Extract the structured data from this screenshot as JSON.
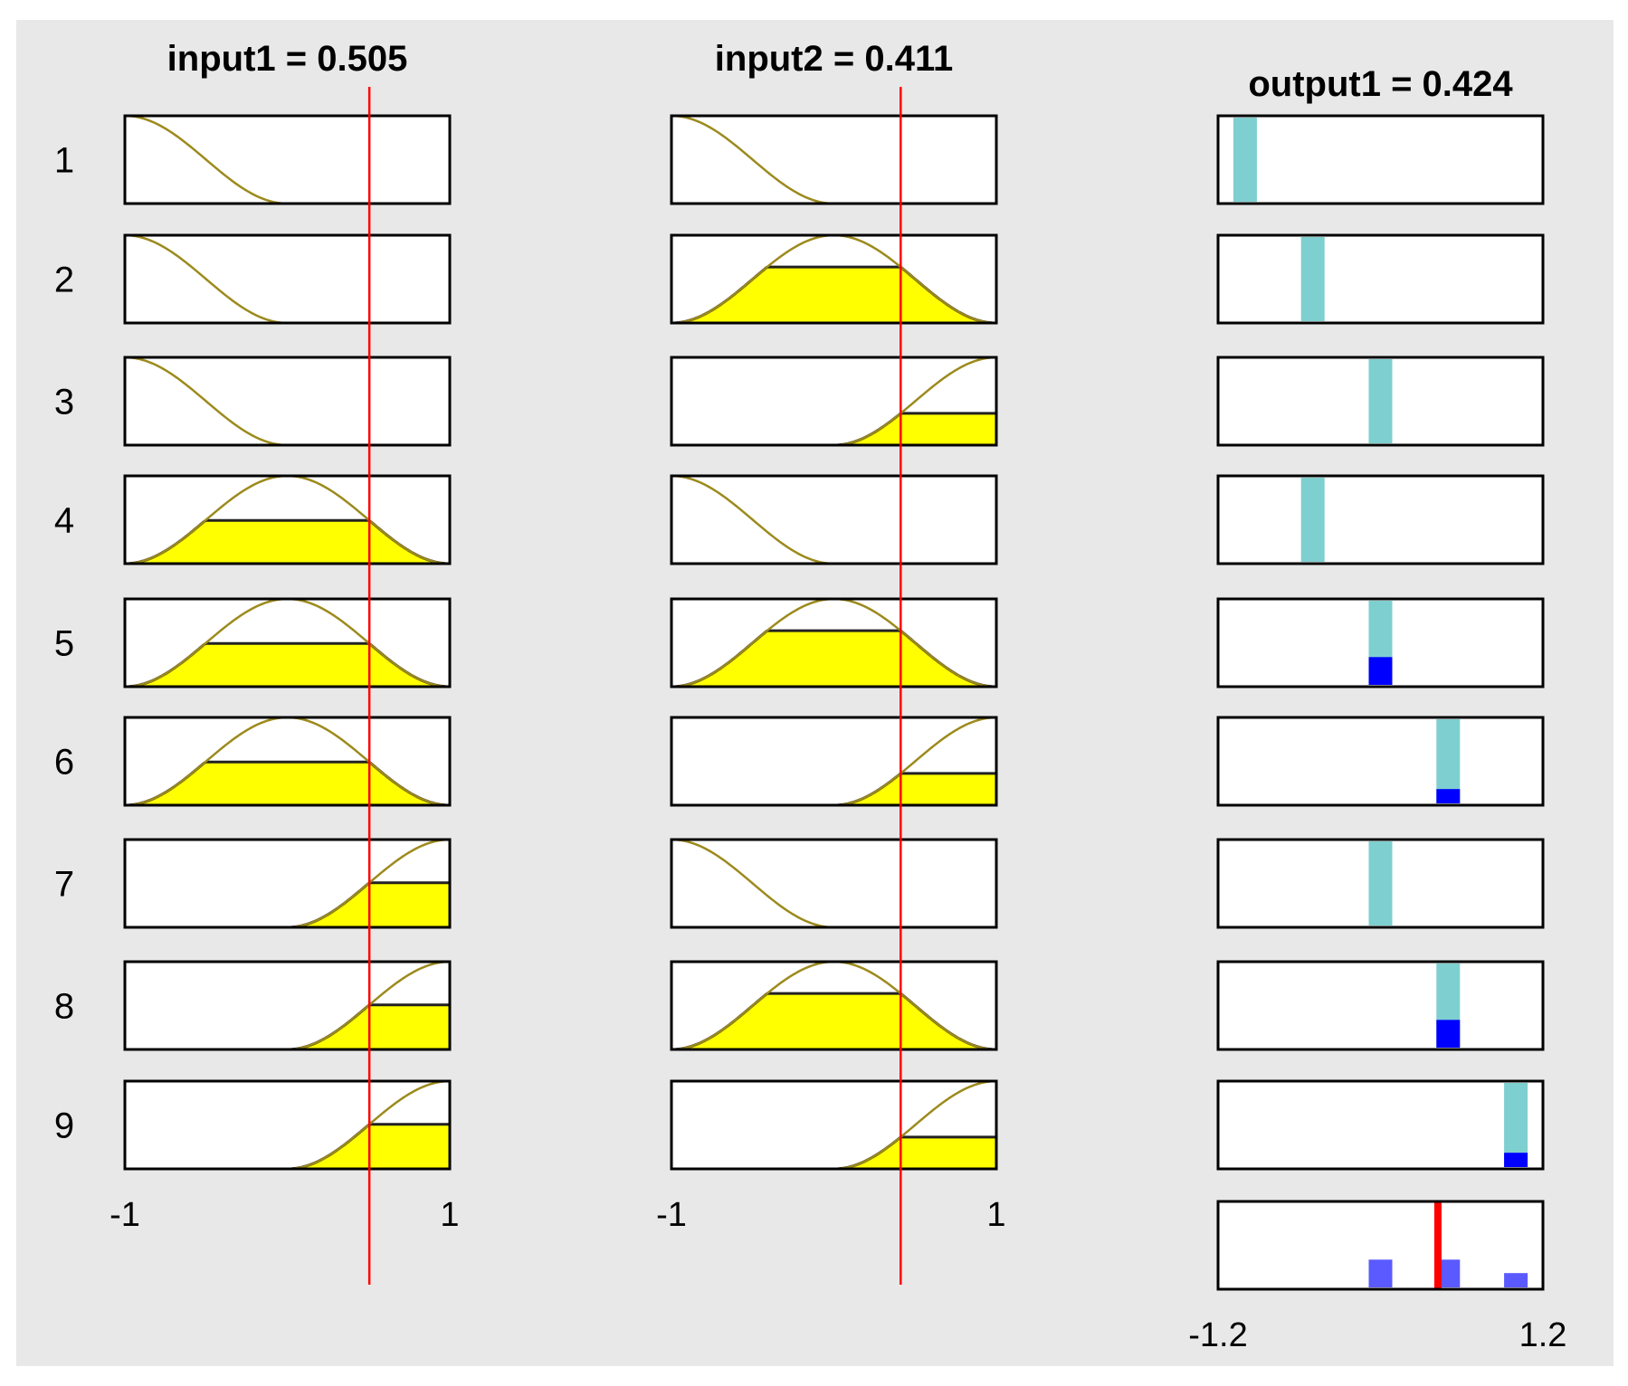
{
  "chart_data": {
    "type": "fuzzy-rule-viewer",
    "inputs": [
      {
        "title": "input1 = 0.505",
        "name": "input1",
        "value": 0.505,
        "range": [
          -1,
          1
        ],
        "tick_labels": [
          "-1",
          "1"
        ],
        "mf_per_rule": [
          "low",
          "low",
          "low",
          "mid",
          "mid",
          "mid",
          "high",
          "high",
          "high"
        ]
      },
      {
        "title": "input2 = 0.411",
        "name": "input2",
        "value": 0.411,
        "range": [
          -1,
          1
        ],
        "tick_labels": [
          "-1",
          "1"
        ],
        "mf_per_rule": [
          "low",
          "mid",
          "high",
          "low",
          "mid",
          "high",
          "low",
          "mid",
          "high"
        ]
      }
    ],
    "output": {
      "title": "output1 = 0.424",
      "name": "output1",
      "value": 0.424,
      "range": [
        -1.2,
        1.2
      ],
      "tick_labels": [
        "-1.2",
        "1.2"
      ],
      "singletons": [
        -1.0,
        -0.5,
        0.0,
        -0.5,
        0.0,
        0.5,
        0.0,
        0.5,
        1.0
      ],
      "firing": [
        0,
        0,
        0,
        0,
        0.33,
        0.17,
        0,
        0.33,
        0.17
      ]
    },
    "rule_labels": [
      "1",
      "2",
      "3",
      "4",
      "5",
      "6",
      "7",
      "8",
      "9"
    ],
    "colors": {
      "background": "#e8e8e8",
      "fill": "#ffff00",
      "curve": "#9c8a1c",
      "singleton": "#7ecfcf",
      "firing": "#0000ff",
      "aggregate": "#5a5aff",
      "value_line": "#ff0000"
    }
  }
}
